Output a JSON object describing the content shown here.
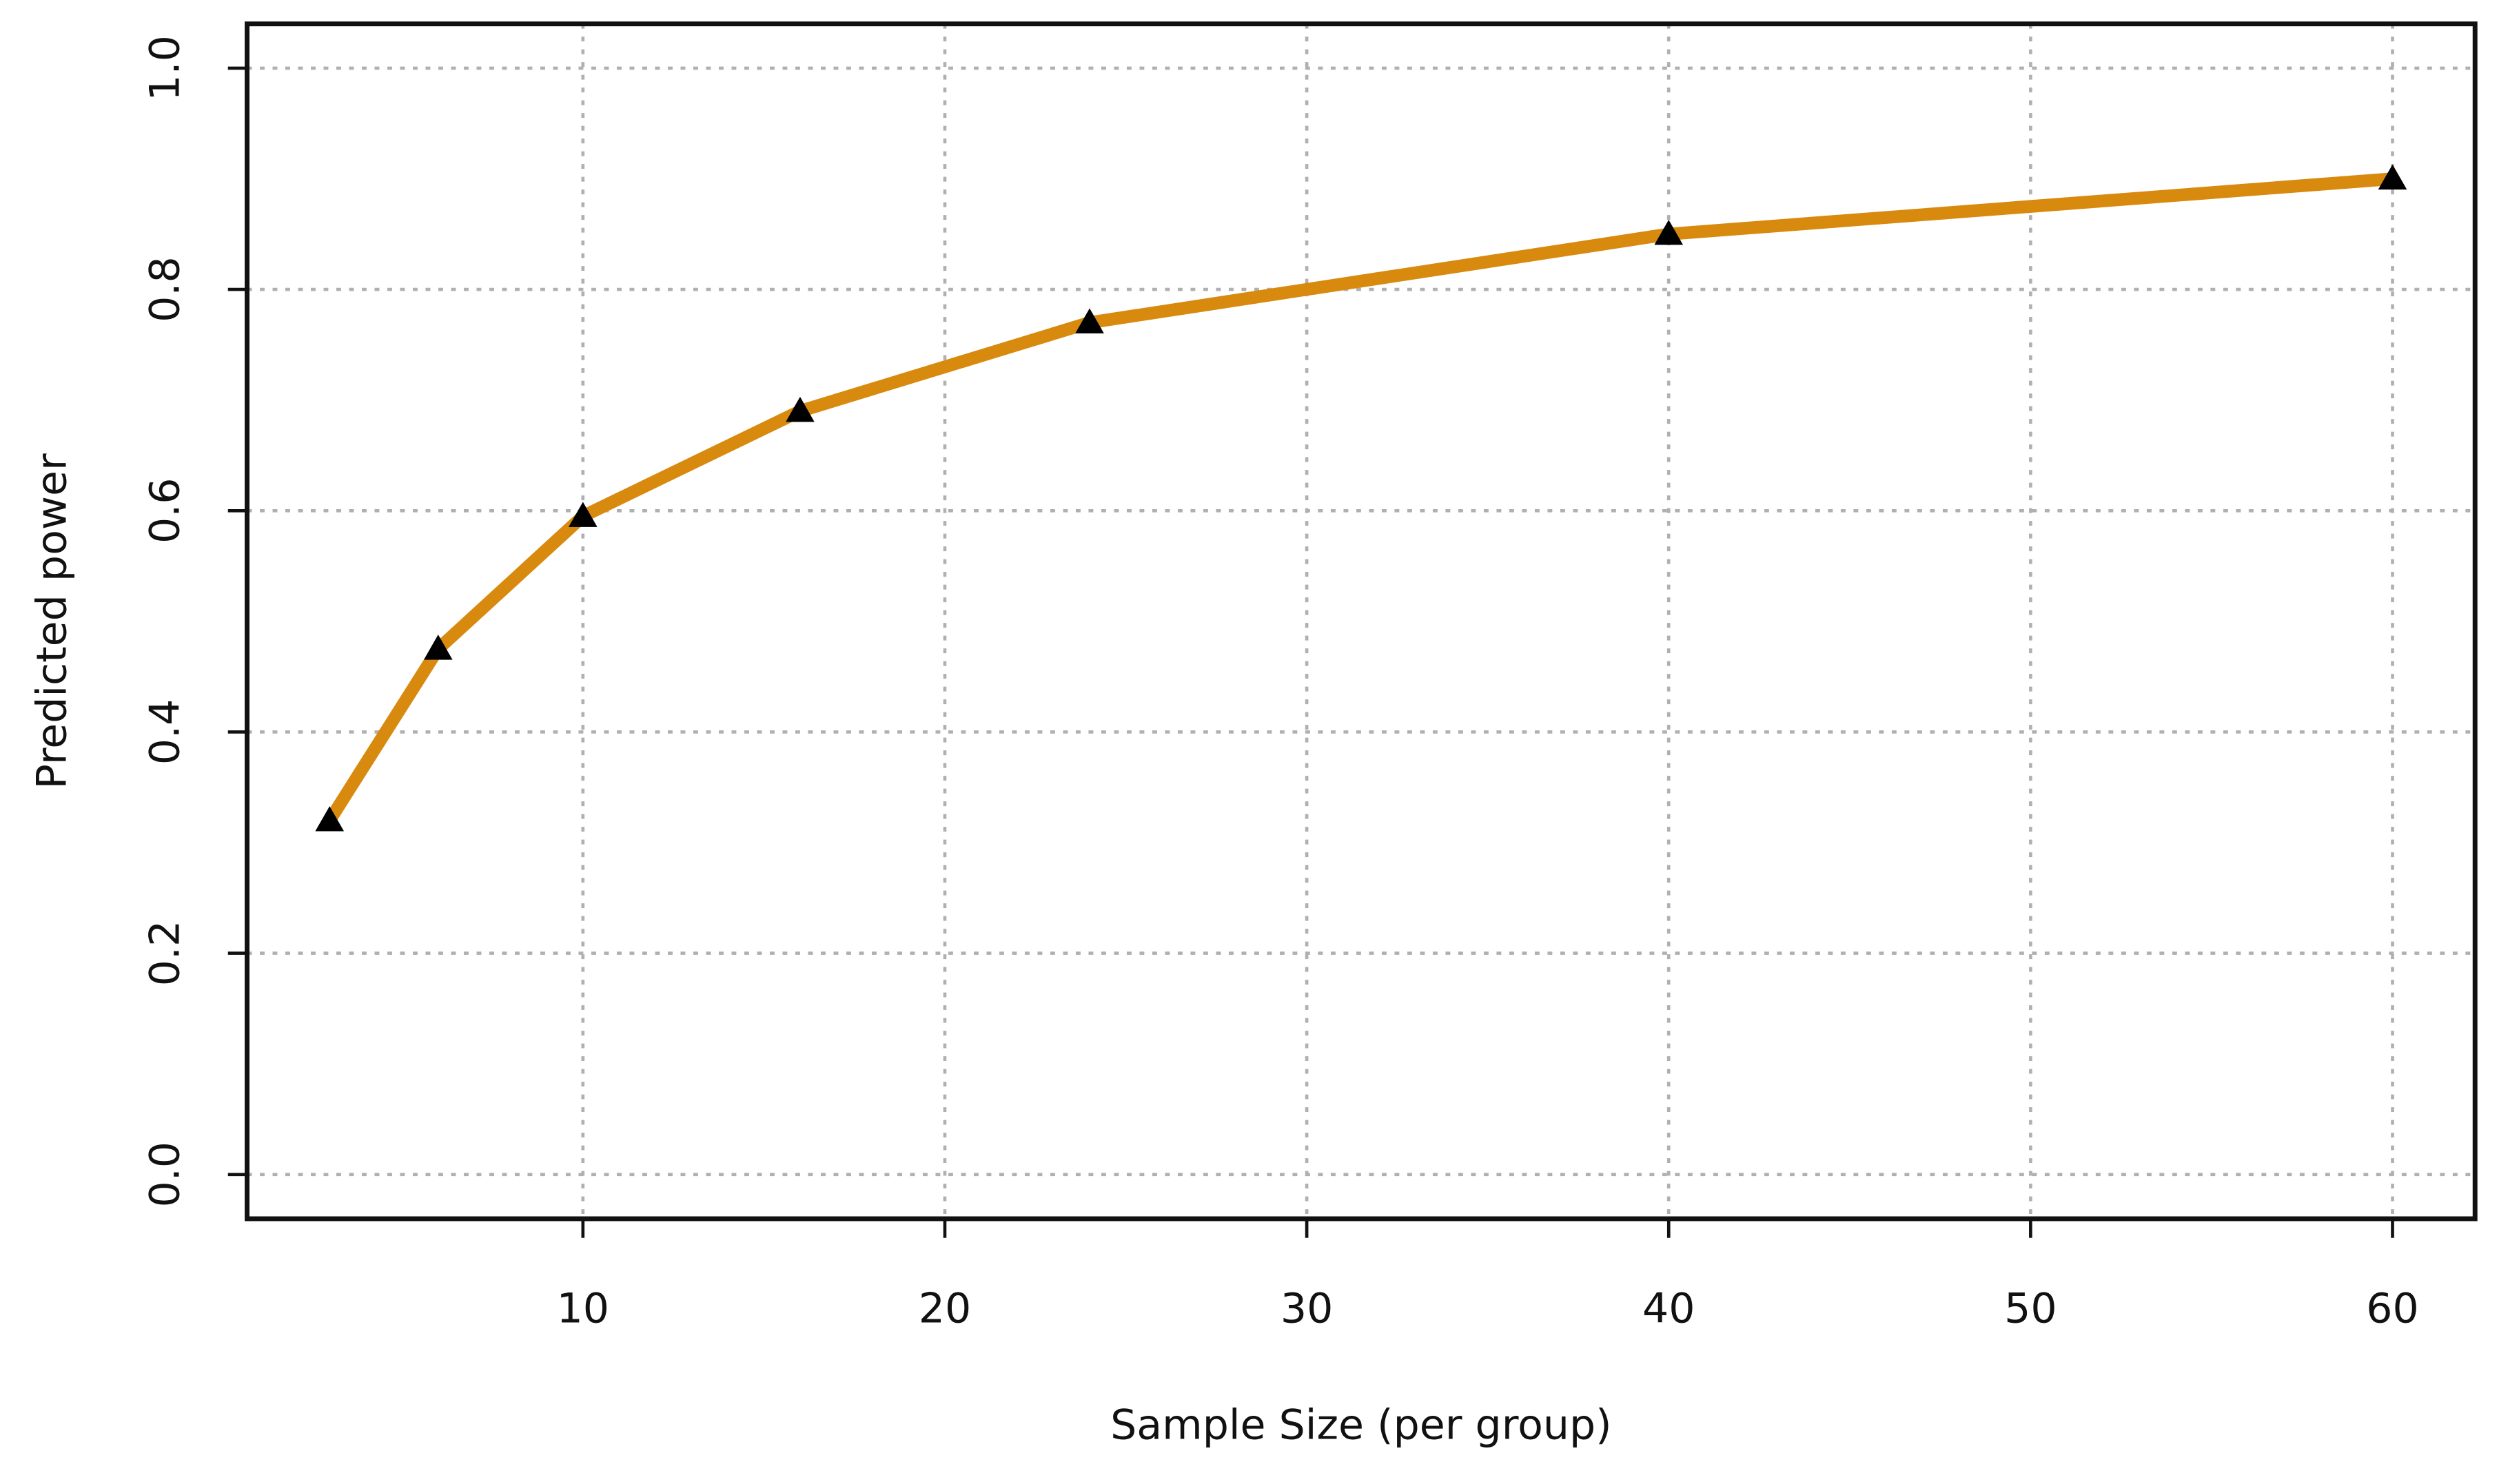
{
  "chart_data": {
    "type": "line",
    "xlabel": "Sample Size (per group)",
    "ylabel": "Predicted power",
    "x": [
      3,
      6,
      10,
      16,
      24,
      40,
      60
    ],
    "series": [
      {
        "color": "#d88a0e",
        "marker_color": "#000000",
        "values": [
          0.32,
          0.475,
          0.595,
          0.69,
          0.77,
          0.85,
          0.9
        ]
      }
    ],
    "xlim": [
      0.72,
      62.28
    ],
    "ylim": [
      -0.04,
      1.04
    ],
    "xticks": [
      10,
      20,
      30,
      40,
      50,
      60
    ],
    "yticks": [
      {
        "value": 0,
        "label": "0.0"
      },
      0.2,
      0.4,
      0.6,
      0.8,
      {
        "value": 1,
        "label": "1.0"
      }
    ],
    "grid": true
  }
}
